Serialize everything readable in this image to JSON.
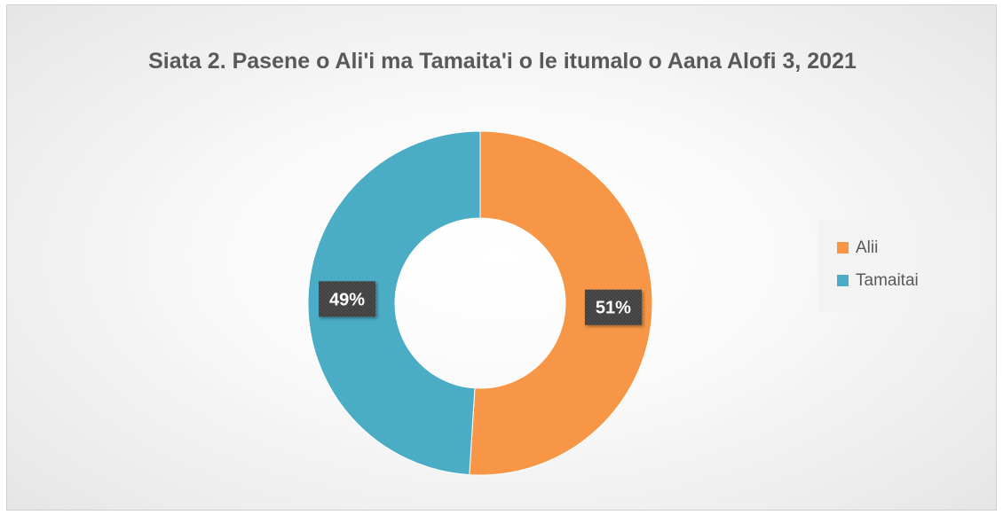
{
  "chart_data": {
    "type": "pie",
    "variant": "donut",
    "title": "Siata 2. Pasene o Ali'i ma Tamaita'i o le itumalo o Aana Alofi 3, 2021",
    "categories": [
      "Alii",
      "Tamaitai"
    ],
    "values": [
      51,
      49
    ],
    "data_labels": [
      "51%",
      "49%"
    ],
    "colors": [
      "#F79646",
      "#4BACC6"
    ],
    "legend_position": "right",
    "start_angle_deg": 0,
    "direction": "clockwise"
  }
}
